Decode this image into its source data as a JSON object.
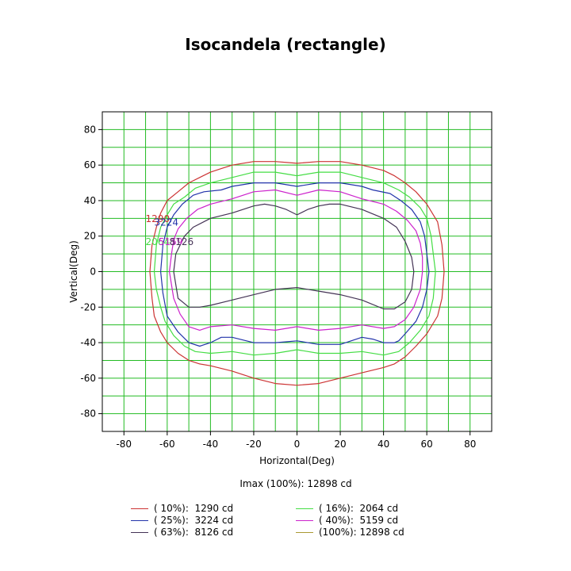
{
  "chart_data": {
    "type": "line",
    "title": "Isocandela (rectangle)",
    "xlabel": "Horizontal(Deg)",
    "ylabel": "Vertical(Deg)",
    "xlim": [
      -90,
      90
    ],
    "ylim": [
      -90,
      90
    ],
    "xticks": [
      -80,
      -60,
      -40,
      -20,
      0,
      20,
      40,
      60,
      80
    ],
    "yticks": [
      -80,
      -60,
      -40,
      -20,
      0,
      20,
      40,
      60,
      80
    ],
    "grid": true,
    "grid_color": "#22bb22",
    "imax_label": "Imax (100%): 12898 cd",
    "series": [
      {
        "name": "( 10%):  1290 cd",
        "label": "1290",
        "color": "#cc3333",
        "label_pos": [
          -70,
          28
        ],
        "points": [
          [
            -68,
            0
          ],
          [
            -67,
            15
          ],
          [
            -65,
            25
          ],
          [
            -63,
            33
          ],
          [
            -60,
            40
          ],
          [
            -55,
            45
          ],
          [
            -50,
            50
          ],
          [
            -45,
            53
          ],
          [
            -40,
            56
          ],
          [
            -35,
            58
          ],
          [
            -30,
            60
          ],
          [
            -20,
            62
          ],
          [
            -10,
            62
          ],
          [
            0,
            61
          ],
          [
            10,
            62
          ],
          [
            20,
            62
          ],
          [
            30,
            60
          ],
          [
            40,
            57
          ],
          [
            45,
            54
          ],
          [
            50,
            50
          ],
          [
            55,
            45
          ],
          [
            60,
            38
          ],
          [
            65,
            28
          ],
          [
            67,
            15
          ],
          [
            68,
            0
          ],
          [
            67,
            -15
          ],
          [
            65,
            -25
          ],
          [
            60,
            -35
          ],
          [
            55,
            -42
          ],
          [
            50,
            -48
          ],
          [
            45,
            -52
          ],
          [
            40,
            -54
          ],
          [
            30,
            -57
          ],
          [
            20,
            -60
          ],
          [
            10,
            -63
          ],
          [
            0,
            -64
          ],
          [
            -10,
            -63
          ],
          [
            -20,
            -60
          ],
          [
            -30,
            -56
          ],
          [
            -40,
            -53
          ],
          [
            -45,
            -52
          ],
          [
            -50,
            -50
          ],
          [
            -55,
            -46
          ],
          [
            -60,
            -40
          ],
          [
            -63,
            -34
          ],
          [
            -66,
            -25
          ],
          [
            -67,
            -15
          ],
          [
            -68,
            0
          ]
        ]
      },
      {
        "name": "( 16%):  2064 cd",
        "label": "2064",
        "color": "#44dd44",
        "label_pos": [
          -70,
          15
        ],
        "points": [
          [
            -66,
            0
          ],
          [
            -65,
            15
          ],
          [
            -63,
            25
          ],
          [
            -60,
            32
          ],
          [
            -57,
            38
          ],
          [
            -52,
            42
          ],
          [
            -47,
            47
          ],
          [
            -40,
            50
          ],
          [
            -30,
            53
          ],
          [
            -20,
            56
          ],
          [
            -10,
            56
          ],
          [
            0,
            54
          ],
          [
            10,
            56
          ],
          [
            20,
            56
          ],
          [
            30,
            53
          ],
          [
            40,
            50
          ],
          [
            47,
            46
          ],
          [
            52,
            42
          ],
          [
            57,
            36
          ],
          [
            60,
            30
          ],
          [
            62,
            20
          ],
          [
            63,
            10
          ],
          [
            64,
            0
          ],
          [
            63,
            -15
          ],
          [
            61,
            -25
          ],
          [
            57,
            -33
          ],
          [
            52,
            -40
          ],
          [
            47,
            -45
          ],
          [
            40,
            -47
          ],
          [
            30,
            -45
          ],
          [
            20,
            -46
          ],
          [
            10,
            -46
          ],
          [
            0,
            -44
          ],
          [
            -10,
            -46
          ],
          [
            -20,
            -47
          ],
          [
            -30,
            -45
          ],
          [
            -40,
            -46
          ],
          [
            -47,
            -45
          ],
          [
            -52,
            -42
          ],
          [
            -57,
            -36
          ],
          [
            -61,
            -28
          ],
          [
            -63,
            -20
          ],
          [
            -65,
            -10
          ],
          [
            -66,
            0
          ]
        ]
      },
      {
        "name": "( 25%):  3224 cd",
        "label": "3224",
        "color": "#2233aa",
        "label_pos": [
          -66,
          26
        ],
        "points": [
          [
            -63,
            0
          ],
          [
            -62,
            15
          ],
          [
            -60,
            25
          ],
          [
            -57,
            32
          ],
          [
            -53,
            38
          ],
          [
            -48,
            43
          ],
          [
            -43,
            45
          ],
          [
            -35,
            46
          ],
          [
            -30,
            48
          ],
          [
            -20,
            50
          ],
          [
            -10,
            50
          ],
          [
            0,
            48
          ],
          [
            10,
            50
          ],
          [
            20,
            50
          ],
          [
            30,
            48
          ],
          [
            35,
            46
          ],
          [
            43,
            44
          ],
          [
            48,
            40
          ],
          [
            53,
            35
          ],
          [
            57,
            28
          ],
          [
            59,
            20
          ],
          [
            60,
            10
          ],
          [
            61,
            0
          ],
          [
            60,
            -10
          ],
          [
            58,
            -20
          ],
          [
            55,
            -28
          ],
          [
            50,
            -35
          ],
          [
            47,
            -39
          ],
          [
            45,
            -40
          ],
          [
            40,
            -40
          ],
          [
            35,
            -38
          ],
          [
            30,
            -37
          ],
          [
            25,
            -39
          ],
          [
            20,
            -41
          ],
          [
            10,
            -41
          ],
          [
            0,
            -39
          ],
          [
            -10,
            -40
          ],
          [
            -20,
            -40
          ],
          [
            -30,
            -37
          ],
          [
            -35,
            -37
          ],
          [
            -40,
            -40
          ],
          [
            -45,
            -42
          ],
          [
            -50,
            -40
          ],
          [
            -55,
            -34
          ],
          [
            -60,
            -25
          ],
          [
            -62,
            -12
          ],
          [
            -63,
            0
          ]
        ]
      },
      {
        "name": "( 40%):  5159 cd",
        "label": "5159",
        "color": "#cc22cc",
        "label_pos": [
          -64,
          15
        ],
        "points": [
          [
            -59,
            0
          ],
          [
            -58,
            10
          ],
          [
            -57,
            18
          ],
          [
            -55,
            24
          ],
          [
            -51,
            30
          ],
          [
            -46,
            35
          ],
          [
            -40,
            38
          ],
          [
            -30,
            41
          ],
          [
            -20,
            45
          ],
          [
            -10,
            46
          ],
          [
            0,
            43
          ],
          [
            10,
            46
          ],
          [
            20,
            45
          ],
          [
            30,
            41
          ],
          [
            40,
            38
          ],
          [
            46,
            34
          ],
          [
            51,
            29
          ],
          [
            55,
            23
          ],
          [
            57,
            16
          ],
          [
            58,
            8
          ],
          [
            58,
            0
          ],
          [
            57,
            -10
          ],
          [
            54,
            -20
          ],
          [
            50,
            -27
          ],
          [
            45,
            -31
          ],
          [
            40,
            -32
          ],
          [
            30,
            -30
          ],
          [
            20,
            -32
          ],
          [
            10,
            -33
          ],
          [
            0,
            -31
          ],
          [
            -10,
            -33
          ],
          [
            -20,
            -32
          ],
          [
            -30,
            -30
          ],
          [
            -40,
            -31
          ],
          [
            -45,
            -33
          ],
          [
            -50,
            -31
          ],
          [
            -54,
            -24
          ],
          [
            -57,
            -15
          ],
          [
            -59,
            0
          ]
        ]
      },
      {
        "name": "( 63%):  8126 cd",
        "label": "8126",
        "color": "#443355",
        "label_pos": [
          -59,
          15
        ],
        "points": [
          [
            -57,
            0
          ],
          [
            -56,
            10
          ],
          [
            -54,
            15
          ],
          [
            -52,
            20
          ],
          [
            -48,
            25
          ],
          [
            -40,
            30
          ],
          [
            -30,
            33
          ],
          [
            -20,
            37
          ],
          [
            -15,
            38
          ],
          [
            -10,
            37
          ],
          [
            -5,
            35
          ],
          [
            0,
            32
          ],
          [
            5,
            35
          ],
          [
            10,
            37
          ],
          [
            15,
            38
          ],
          [
            20,
            38
          ],
          [
            30,
            35
          ],
          [
            40,
            30
          ],
          [
            46,
            25
          ],
          [
            50,
            17
          ],
          [
            53,
            8
          ],
          [
            54,
            0
          ],
          [
            53,
            -10
          ],
          [
            50,
            -17
          ],
          [
            45,
            -21
          ],
          [
            40,
            -21
          ],
          [
            30,
            -16
          ],
          [
            20,
            -13
          ],
          [
            10,
            -11
          ],
          [
            0,
            -9
          ],
          [
            -10,
            -10
          ],
          [
            -20,
            -13
          ],
          [
            -30,
            -16
          ],
          [
            -40,
            -19
          ],
          [
            -45,
            -20
          ],
          [
            -50,
            -20
          ],
          [
            -55,
            -15
          ],
          [
            -57,
            0
          ]
        ]
      },
      {
        "name": "(100%): 12898 cd",
        "label": "12898",
        "color": "#aa9933",
        "label_pos": null,
        "points": []
      }
    ]
  }
}
